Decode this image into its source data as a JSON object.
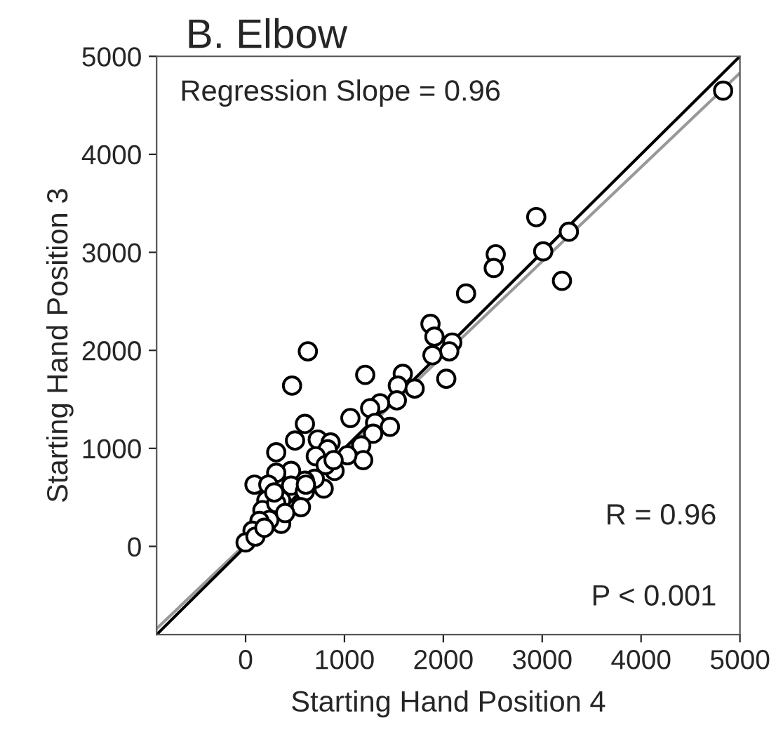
{
  "chart_data": {
    "type": "scatter",
    "title": "B. Elbow",
    "xlabel": "Starting Hand Position 4",
    "ylabel": "Starting Hand Position 3",
    "xlim": [
      -900,
      5000
    ],
    "ylim": [
      -900,
      5000
    ],
    "xticks": [
      0,
      1000,
      2000,
      3000,
      4000,
      5000
    ],
    "yticks": [
      0,
      1000,
      2000,
      3000,
      4000,
      5000
    ],
    "grid": false,
    "series": [
      {
        "color": "#000000",
        "marker": "circle",
        "x": [
          4830,
          2940,
          3010,
          3270,
          3200,
          2530,
          2510,
          2230,
          1870,
          1910,
          2090,
          2060,
          1890,
          2030,
          630,
          470,
          1210,
          1590,
          1540,
          1710,
          1530,
          1360,
          1260,
          1310,
          1460,
          1290,
          1060,
          1170,
          1190,
          1030,
          600,
          500,
          310,
          730,
          860,
          830,
          710,
          900,
          790,
          700,
          600,
          460,
          310,
          90,
          230,
          460,
          600,
          360,
          210,
          170,
          310,
          560,
          360,
          240,
          140,
          70,
          0,
          100,
          190,
          400,
          290,
          810,
          890,
          610
        ],
        "values": [
          4650,
          3360,
          3010,
          3210,
          2710,
          2980,
          2840,
          2580,
          2270,
          2140,
          2080,
          1990,
          1950,
          1710,
          1990,
          1640,
          1750,
          1760,
          1640,
          1610,
          1490,
          1460,
          1410,
          1260,
          1220,
          1150,
          1310,
          1030,
          880,
          930,
          1250,
          1080,
          960,
          1090,
          1060,
          990,
          920,
          770,
          590,
          690,
          670,
          770,
          750,
          630,
          630,
          620,
          560,
          470,
          470,
          370,
          440,
          400,
          230,
          270,
          260,
          160,
          40,
          100,
          190,
          340,
          550,
          830,
          880,
          630
        ]
      },
      {
        "type": "line",
        "color": "#000000",
        "x": [
          -900,
          5000
        ],
        "values": [
          -900,
          5000
        ]
      },
      {
        "type": "line",
        "color": "#999999",
        "x": [
          -900,
          5000
        ],
        "values": [
          -840,
          4830
        ]
      }
    ],
    "annotations": [
      "Regression Slope = 0.96",
      "R = 0.96",
      "P < 0.001"
    ]
  }
}
